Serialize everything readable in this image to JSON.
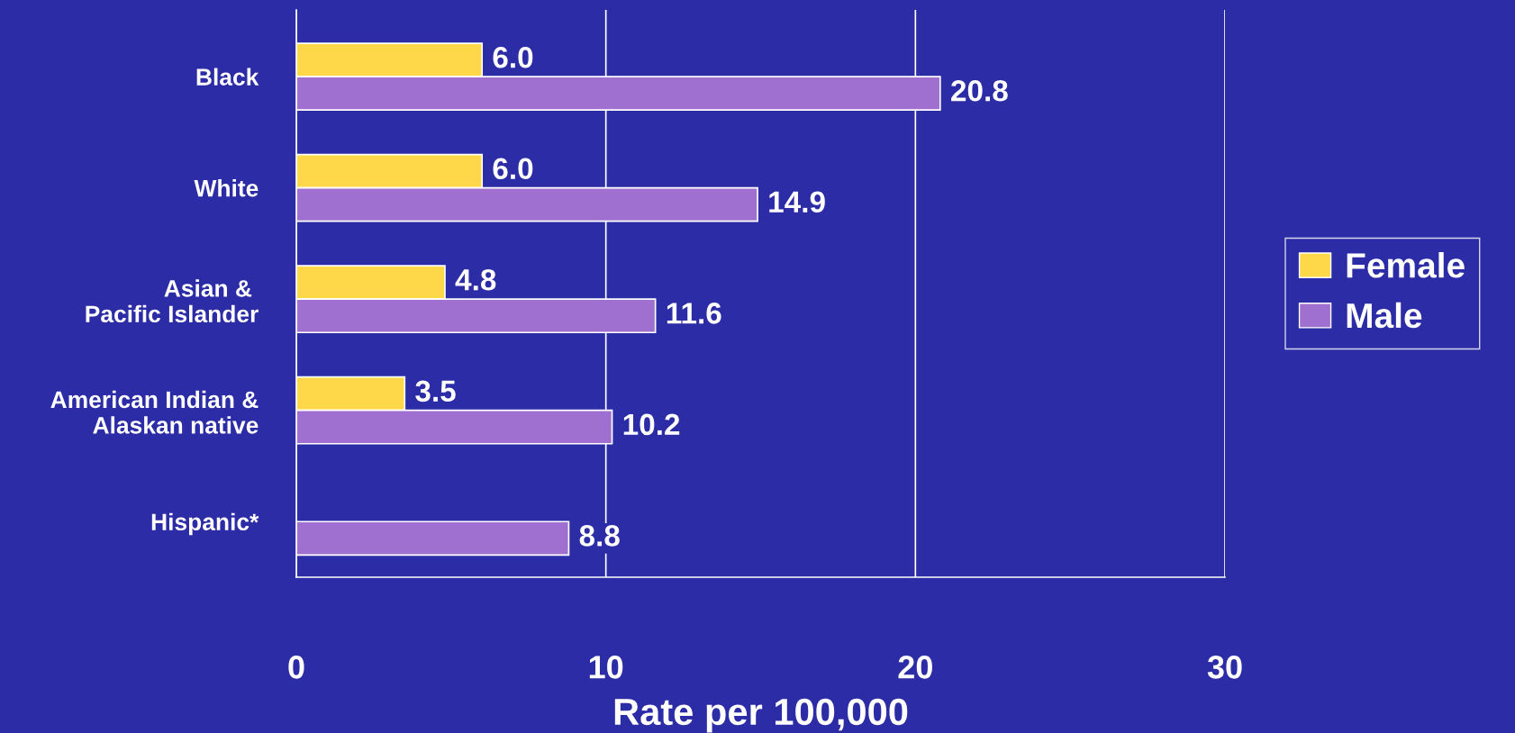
{
  "chart_data": {
    "type": "bar",
    "orientation": "horizontal",
    "xlabel": "Rate per 100,000",
    "categories": [
      "Black",
      "White",
      "Asian & \nPacific Islander",
      "American Indian &\nAlaskan native",
      "Hispanic*"
    ],
    "series": [
      {
        "name": "Female",
        "color": "#ffd84a",
        "values": [
          6.0,
          6.0,
          4.8,
          3.5,
          null
        ],
        "value_labels": [
          "6.0",
          "6.0",
          "4.8",
          "3.5",
          null
        ]
      },
      {
        "name": "Male",
        "color": "#a070d0",
        "values": [
          20.8,
          14.9,
          11.6,
          10.2,
          8.8
        ],
        "value_labels": [
          "20.8",
          "14.9",
          "11.6",
          "10.2",
          "8.8"
        ]
      }
    ],
    "xlim": [
      0,
      30
    ],
    "xticks": [
      0,
      10,
      20,
      30
    ],
    "grid": "x",
    "legend": "right"
  }
}
